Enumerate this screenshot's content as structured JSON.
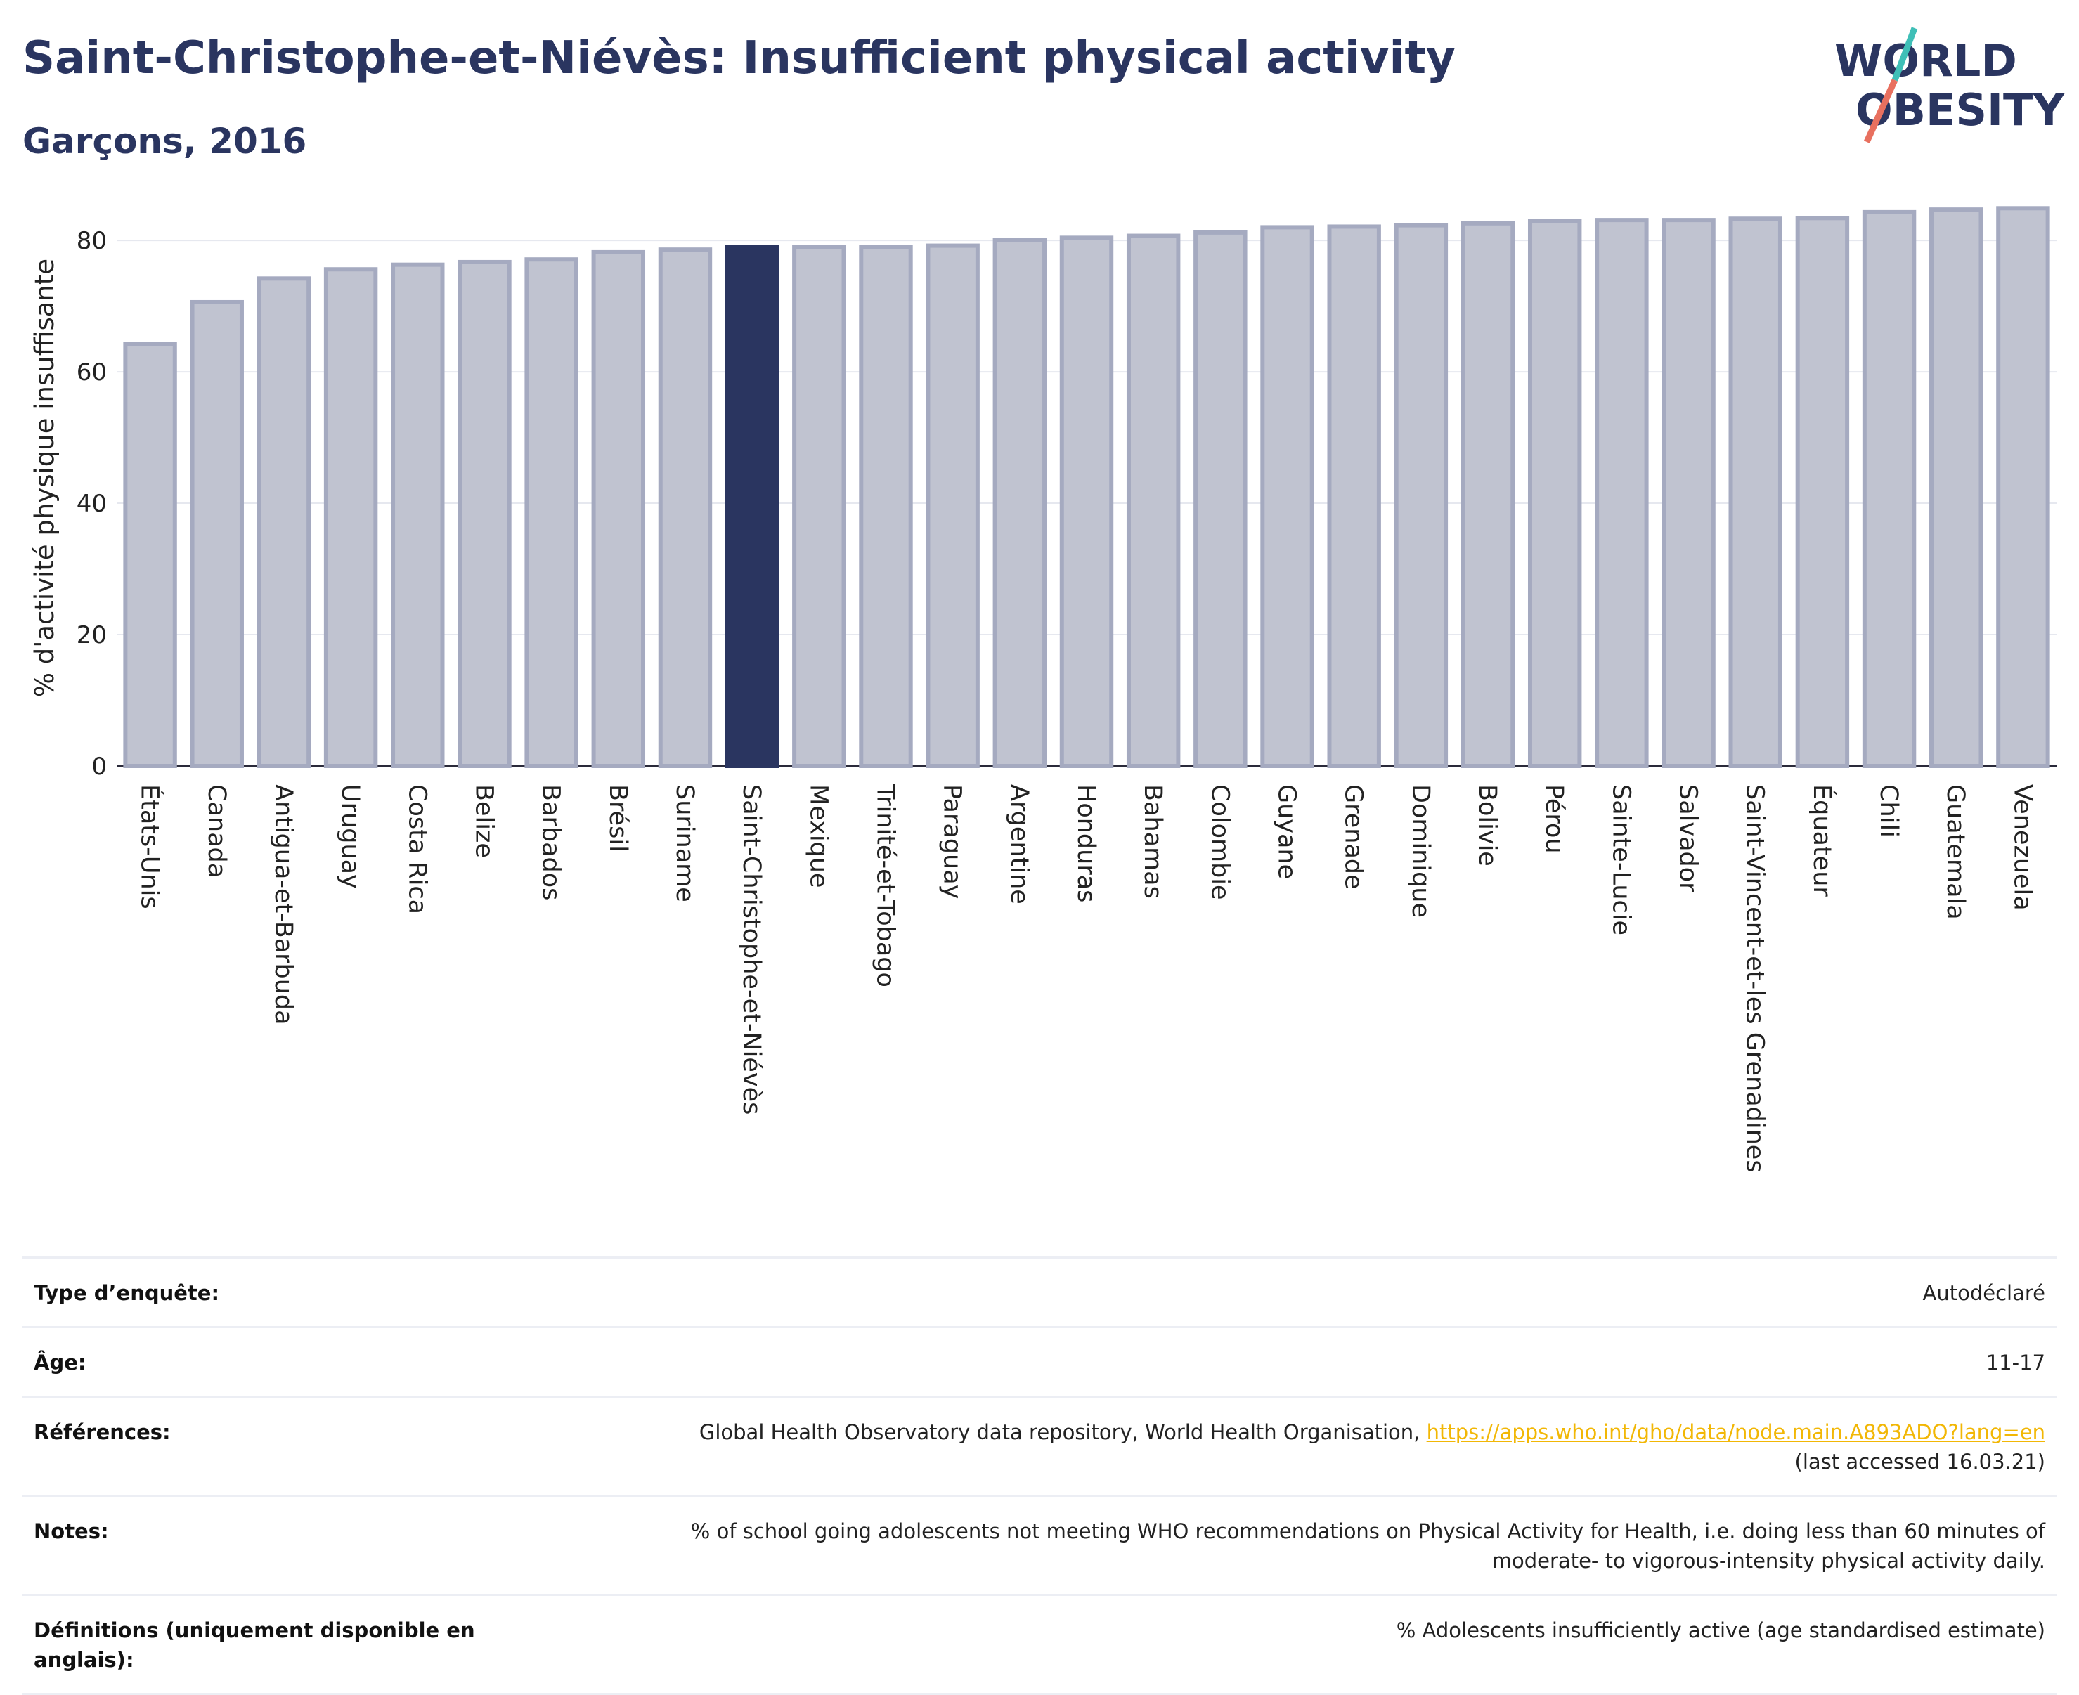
{
  "header": {
    "title": "Saint-Christophe-et-Niévès: Insufficient physical activity",
    "subtitle": "Garçons, 2016"
  },
  "logo": {
    "line1": "WORLD",
    "line2": "OBESITY",
    "colors": [
      "#2a3560",
      "#3fbfb7",
      "#e8705f"
    ]
  },
  "chart_data": {
    "type": "bar",
    "ylabel": "% d'activité physique insuffisante",
    "ylim": [
      0,
      86
    ],
    "yticks": [
      0,
      20,
      40,
      60,
      80
    ],
    "grid": true,
    "highlight": "Saint-Christophe-et-Niévès",
    "colors": {
      "bar": "#c0c3d0",
      "bar_border": "#a5aac0",
      "highlight": "#2a3560"
    },
    "categories": [
      "États-Unis",
      "Canada",
      "Antigua-et-Barbuda",
      "Uruguay",
      "Costa Rica",
      "Belize",
      "Barbados",
      "Brésil",
      "Suriname",
      "Saint-Christophe-et-Niévès",
      "Mexique",
      "Trinité-et-Tobago",
      "Paraguay",
      "Argentine",
      "Honduras",
      "Bahamas",
      "Colombie",
      "Guyane",
      "Grenade",
      "Dominique",
      "Bolivie",
      "Pérou",
      "Sainte-Lucie",
      "Salvador",
      "Saint-Vincent-et-les Grenadines",
      "Équateur",
      "Chili",
      "Guatemala",
      "Venezuela"
    ],
    "values": [
      64.2,
      70.6,
      74.2,
      75.6,
      76.3,
      76.7,
      77.1,
      78.2,
      78.6,
      79.0,
      79.0,
      79.0,
      79.2,
      80.1,
      80.4,
      80.7,
      81.2,
      82.0,
      82.1,
      82.3,
      82.6,
      82.9,
      83.1,
      83.1,
      83.3,
      83.4,
      84.3,
      84.7,
      84.9
    ]
  },
  "info": {
    "survey_label": "Type d’enquête:",
    "survey_value": "Autodéclaré",
    "age_label": "Âge:",
    "age_value": "11-17",
    "references_label": "Références:",
    "references_text": "Global Health Observatory data repository, World Health Organisation, ",
    "references_link": "https://apps.who.int/gho/data/node.main.A893ADO?lang=en",
    "references_accessed": "(last accessed 16.03.21)",
    "notes_label": "Notes:",
    "notes_line1": "% of school going adolescents not meeting WHO recommendations on Physical Activity for Health, i.e. doing less than 60 minutes of",
    "notes_line2": "moderate- to vigorous-intensity physical activity daily.",
    "definitions_label": "Définitions (uniquement disponible en anglais):",
    "definitions_value": "% Adolescents insufficiently active (age standardised estimate)"
  }
}
